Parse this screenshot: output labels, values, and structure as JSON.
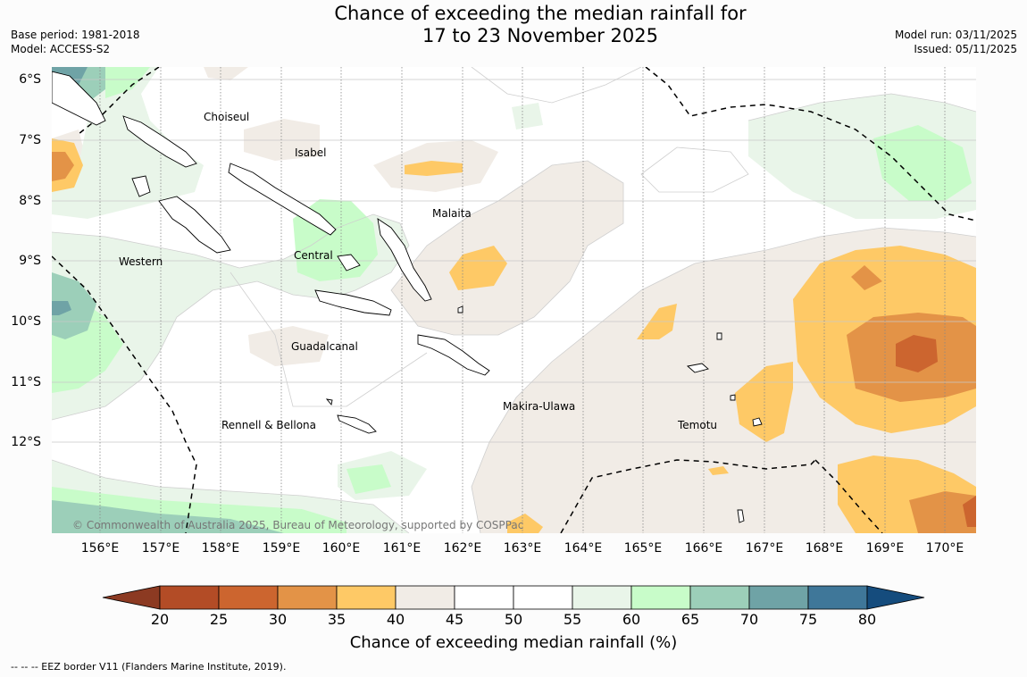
{
  "title": {
    "line1": "Chance of exceeding the median rainfall for",
    "line2": "17 to 23 November 2025"
  },
  "meta_left": {
    "base_period": "Base period: 1981-2018",
    "model": "Model: ACCESS-S2"
  },
  "meta_right": {
    "model_run": "Model run: 03/11/2025",
    "issued": "Issued: 05/11/2025"
  },
  "map": {
    "latitude_labels": [
      "6°S",
      "7°S",
      "8°S",
      "9°S",
      "10°S",
      "11°S",
      "12°S"
    ],
    "longitude_labels": [
      "156°E",
      "157°E",
      "158°E",
      "159°E",
      "160°E",
      "161°E",
      "162°E",
      "163°E",
      "164°E",
      "165°E",
      "166°E",
      "167°E",
      "168°E",
      "169°E",
      "170°E"
    ],
    "regions": {
      "choiseul": "Choiseul",
      "isabel": "Isabel",
      "malaita": "Malaita",
      "western": "Western",
      "central": "Central",
      "guadalcanal": "Guadalcanal",
      "makira": "Makira-Ulawa",
      "temotu": "Temotu",
      "rennell": "Rennell & Bellona"
    },
    "copyright": "© Commonwealth of Australia 2025, Bureau of Meteorology, supported by COSPPac"
  },
  "colorbar": {
    "ticks": [
      "20",
      "25",
      "30",
      "35",
      "40",
      "45",
      "50",
      "55",
      "60",
      "65",
      "70",
      "75",
      "80"
    ],
    "colors": [
      "#8c3a22",
      "#b34c26",
      "#cc652f",
      "#e39347",
      "#fec966",
      "#f1ece6",
      "#ffffff",
      "#ffffff",
      "#e9f5e9",
      "#c8fcc9",
      "#9ccfb9",
      "#6fa3a6",
      "#3f7799",
      "#154c7d"
    ],
    "title": "Chance of exceeding median rainfall (%)"
  },
  "footnote": "--  --  -- EEZ border V11 (Flanders Marine Institute, 2019)."
}
